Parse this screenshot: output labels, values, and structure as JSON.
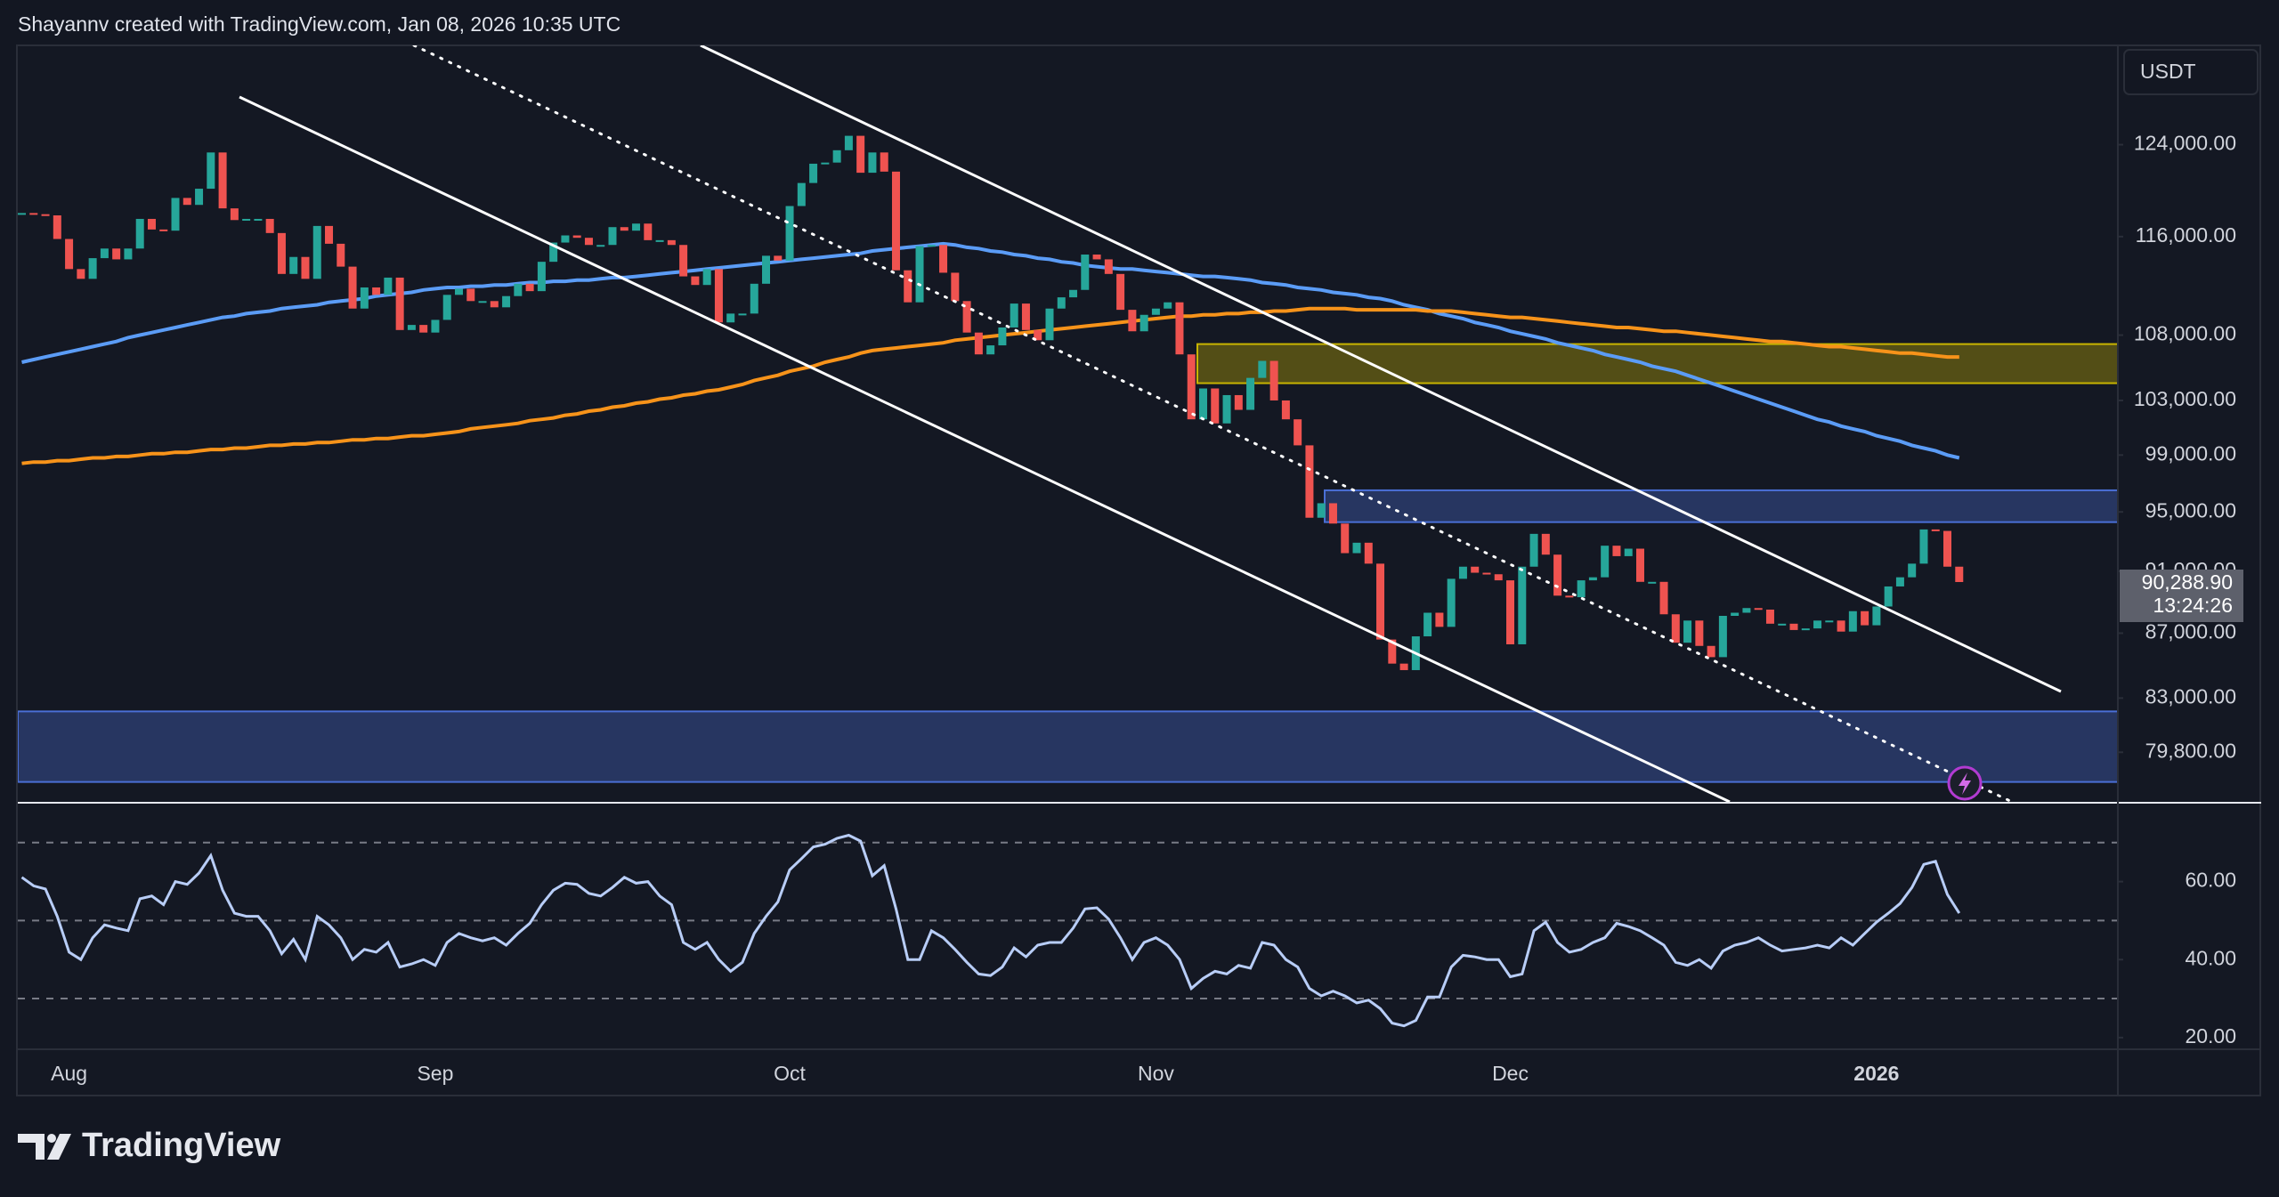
{
  "header": "Shayannv created with TradingView.com, Jan 08, 2026 10:35 UTC",
  "currency": "USDT",
  "brand": "TradingView",
  "chart_data": [
    {
      "type": "candlestick",
      "categories": [
        null,
        null,
        null,
        null,
        "Aug",
        null,
        null,
        null,
        null,
        null,
        null,
        null,
        null,
        null,
        null,
        null,
        null,
        null,
        null,
        null,
        null,
        null,
        null,
        null,
        null,
        null,
        null,
        null,
        null,
        null,
        null,
        null,
        null,
        null,
        null,
        "Sep",
        null,
        null,
        null,
        null,
        null,
        null,
        null,
        null,
        null,
        null,
        null,
        null,
        null,
        null,
        null,
        null,
        null,
        null,
        null,
        null,
        null,
        null,
        null,
        null,
        null,
        null,
        null,
        null,
        null,
        "Oct",
        null,
        null,
        null,
        null,
        null,
        null,
        null,
        null,
        null,
        null,
        null,
        null,
        null,
        null,
        null,
        null,
        null,
        null,
        null,
        null,
        null,
        null,
        null,
        null,
        null,
        null,
        null,
        null,
        null,
        null,
        "Nov",
        null,
        null,
        null,
        null,
        null,
        null,
        null,
        null,
        null,
        null,
        null,
        null,
        null,
        null,
        null,
        null,
        null,
        null,
        null,
        null,
        null,
        null,
        null,
        null,
        null,
        null,
        null,
        null,
        null,
        "Dec",
        null,
        null,
        null,
        null,
        null,
        null,
        null,
        null,
        null,
        null,
        null,
        null,
        null,
        null,
        null,
        null,
        null,
        null,
        null,
        null,
        null,
        null,
        null,
        null,
        null,
        null,
        null,
        null,
        null,
        null,
        "2026",
        null,
        null,
        null,
        null,
        null,
        null,
        null
      ],
      "close": [
        118000,
        117900,
        117800,
        115800,
        113300,
        112500,
        114200,
        115000,
        114100,
        115000,
        117500,
        116600,
        116500,
        119300,
        118700,
        120100,
        123300,
        118400,
        117400,
        117500,
        117500,
        116300,
        112900,
        114300,
        112500,
        116900,
        115400,
        113500,
        110100,
        111800,
        111200,
        112600,
        108400,
        108800,
        108200,
        109200,
        111200,
        111700,
        110700,
        110700,
        110200,
        111100,
        112100,
        111500,
        113900,
        115500,
        116100,
        115900,
        115300,
        115300,
        116800,
        116500,
        117100,
        115700,
        115700,
        115300,
        112700,
        112000,
        113300,
        109000,
        109700,
        109700,
        112100,
        114400,
        114000,
        118600,
        120600,
        122300,
        122400,
        123500,
        124800,
        121500,
        123300,
        121600,
        113200,
        110600,
        115200,
        115300,
        113000,
        110700,
        108200,
        106500,
        107200,
        108600,
        110500,
        108400,
        107600,
        110100,
        111000,
        111600,
        114500,
        114100,
        112900,
        110000,
        108300,
        109600,
        110100,
        110600,
        106500,
        101600,
        103900,
        101300,
        103400,
        102300,
        104700,
        106000,
        103000,
        101600,
        99700,
        94600,
        95600,
        94200,
        92200,
        92900,
        91500,
        86600,
        85100,
        84700,
        86800,
        88300,
        87400,
        90500,
        91300,
        90900,
        90800,
        90400,
        86300,
        91300,
        93500,
        92100,
        89400,
        89300,
        90400,
        90600,
        92700,
        92000,
        92500,
        90300,
        90300,
        88200,
        86400,
        87800,
        86200,
        85500,
        88100,
        88300,
        88600,
        88500,
        87600,
        87600,
        87200,
        87300,
        87800,
        87800,
        87100,
        88400,
        87500,
        88700,
        90000,
        90600,
        91500,
        93800,
        93700,
        91300,
        90288.9
      ],
      "up_color": "#26a69a",
      "down_color": "#ef5350",
      "lines": [
        {
          "color": "#5b9cf6",
          "values": [
            105900,
            106100,
            106300,
            106500,
            106700,
            106900,
            107100,
            107300,
            107500,
            107800,
            108000,
            108200,
            108400,
            108600,
            108800,
            109000,
            109200,
            109400,
            109500,
            109700,
            109800,
            109900,
            110100,
            110200,
            110300,
            110400,
            110600,
            110700,
            110800,
            110900,
            111100,
            111200,
            111300,
            111400,
            111600,
            111700,
            111800,
            111800,
            111900,
            111900,
            112000,
            112000,
            112100,
            112200,
            112200,
            112300,
            112300,
            112400,
            112400,
            112500,
            112600,
            112600,
            112700,
            112800,
            112900,
            113000,
            113100,
            113200,
            113300,
            113400,
            113500,
            113600,
            113700,
            113800,
            113900,
            114000,
            114100,
            114200,
            114300,
            114400,
            114500,
            114600,
            114800,
            114900,
            115000,
            115100,
            115200,
            115300,
            115400,
            115300,
            115100,
            115000,
            114800,
            114700,
            114500,
            114400,
            114200,
            114100,
            113900,
            113800,
            113600,
            113500,
            113400,
            113300,
            113300,
            113200,
            113100,
            113000,
            112900,
            112800,
            112700,
            112700,
            112600,
            112500,
            112400,
            112200,
            112100,
            112000,
            111800,
            111700,
            111600,
            111400,
            111300,
            111200,
            111000,
            110900,
            110700,
            110400,
            110200,
            110000,
            109700,
            109500,
            109300,
            109000,
            108800,
            108600,
            108300,
            108100,
            107900,
            107700,
            107400,
            107200,
            107000,
            106800,
            106500,
            106300,
            106100,
            105900,
            105600,
            105400,
            105200,
            104900,
            104600,
            104300,
            104000,
            103700,
            103400,
            103100,
            102800,
            102500,
            102200,
            101900,
            101600,
            101400,
            101100,
            100900,
            100700,
            100400,
            100200,
            100000,
            99700,
            99500,
            99300,
            99000,
            98800
          ]
        },
        {
          "color": "#f7931a",
          "values": [
            98400,
            98500,
            98500,
            98600,
            98600,
            98700,
            98800,
            98800,
            98900,
            98900,
            99000,
            99100,
            99100,
            99200,
            99200,
            99300,
            99400,
            99400,
            99500,
            99500,
            99600,
            99700,
            99700,
            99800,
            99800,
            99900,
            99900,
            100000,
            100100,
            100100,
            100200,
            100200,
            100300,
            100400,
            100400,
            100500,
            100600,
            100700,
            100900,
            101000,
            101100,
            101200,
            101300,
            101500,
            101600,
            101700,
            101900,
            102000,
            102200,
            102300,
            102500,
            102600,
            102800,
            102900,
            103100,
            103200,
            103400,
            103500,
            103700,
            103800,
            104000,
            104200,
            104500,
            104700,
            104900,
            105200,
            105400,
            105600,
            105900,
            106100,
            106300,
            106600,
            106800,
            106900,
            107000,
            107100,
            107200,
            107300,
            107400,
            107600,
            107700,
            107800,
            107900,
            108000,
            108100,
            108200,
            108300,
            108400,
            108500,
            108600,
            108700,
            108800,
            108900,
            109000,
            109100,
            109200,
            109300,
            109400,
            109500,
            109500,
            109600,
            109600,
            109700,
            109700,
            109800,
            109800,
            109900,
            109900,
            110000,
            110100,
            110100,
            110100,
            110100,
            110000,
            110000,
            110000,
            110000,
            110000,
            110000,
            109900,
            109900,
            109900,
            109800,
            109700,
            109600,
            109500,
            109400,
            109400,
            109300,
            109200,
            109100,
            109000,
            108900,
            108800,
            108700,
            108600,
            108600,
            108500,
            108400,
            108300,
            108300,
            108200,
            108100,
            108000,
            107900,
            107800,
            107700,
            107600,
            107500,
            107500,
            107400,
            107300,
            107200,
            107100,
            107100,
            107000,
            106900,
            106800,
            106700,
            106600,
            106600,
            106500,
            106400,
            106300,
            106300
          ]
        }
      ],
      "zones": [
        {
          "top": 107300,
          "bottom": 104300,
          "color": "#c8b400"
        },
        {
          "top": 96500,
          "bottom": 94300,
          "color": "#4a6fd6"
        },
        {
          "top": 82200,
          "bottom": 78100,
          "color": "#4a6fd6"
        }
      ],
      "log_scale": true,
      "ylim": [
        76980,
        133260
      ],
      "yticks": [
        {
          "value": 79800,
          "label": "79,800.00"
        },
        {
          "value": 83000,
          "label": "83,000.00"
        },
        {
          "value": 87000,
          "label": "87,000.00"
        },
        {
          "value": 91000,
          "label": "91,000.00"
        },
        {
          "value": 95000,
          "label": "95,000.00"
        },
        {
          "value": 99000,
          "label": "99,000.00"
        },
        {
          "value": 103000,
          "label": "103,000.00"
        },
        {
          "value": 108000,
          "label": "108,000.00"
        },
        {
          "value": 116000,
          "label": "116,000.00"
        },
        {
          "value": 124000,
          "label": "124,000.00"
        }
      ],
      "last_label": "90,288.90",
      "countdown": "13:24:26"
    },
    {
      "type": "line",
      "color": "#b8cdf7",
      "values": [
        61.1,
        58.9,
        58.1,
        51.1,
        41.9,
        40.0,
        45.6,
        48.9,
        48.1,
        47.4,
        55.6,
        56.3,
        54.1,
        60.0,
        59.3,
        62.2,
        66.7,
        57.8,
        51.9,
        51.1,
        51.1,
        47.4,
        41.5,
        45.2,
        40.0,
        51.1,
        48.9,
        45.6,
        40.0,
        42.6,
        41.9,
        44.4,
        38.1,
        38.9,
        40.0,
        38.5,
        44.4,
        46.7,
        45.6,
        44.8,
        45.6,
        43.7,
        46.7,
        49.3,
        54.1,
        57.8,
        59.6,
        59.3,
        57.0,
        56.3,
        58.5,
        61.1,
        59.6,
        60.0,
        56.3,
        54.1,
        44.4,
        42.6,
        44.4,
        40.0,
        37.0,
        39.3,
        46.7,
        51.1,
        54.8,
        63.0,
        65.9,
        68.9,
        69.6,
        71.1,
        71.9,
        70.4,
        61.5,
        64.1,
        53.0,
        40.0,
        40.0,
        47.4,
        45.6,
        42.6,
        39.3,
        36.3,
        35.9,
        38.1,
        43.0,
        40.7,
        43.7,
        44.4,
        44.4,
        48.1,
        53.0,
        53.3,
        50.4,
        45.6,
        40.0,
        44.4,
        45.6,
        43.7,
        40.0,
        32.6,
        35.2,
        37.0,
        36.3,
        38.5,
        37.8,
        44.4,
        43.7,
        40.0,
        38.1,
        32.6,
        30.7,
        31.9,
        30.7,
        28.9,
        29.6,
        27.4,
        23.7,
        23.0,
        24.4,
        30.4,
        30.4,
        38.1,
        41.1,
        40.7,
        40.0,
        40.0,
        35.6,
        36.3,
        47.4,
        49.6,
        44.4,
        41.9,
        42.6,
        44.4,
        45.6,
        49.3,
        48.5,
        47.4,
        45.6,
        43.7,
        39.3,
        38.5,
        40.0,
        37.8,
        42.2,
        43.7,
        44.4,
        45.6,
        43.7,
        42.2,
        42.6,
        43.0,
        43.7,
        43.0,
        45.6,
        43.7,
        46.7,
        49.6,
        51.9,
        54.4,
        58.5,
        64.4,
        65.2,
        56.7,
        51.9
      ],
      "ylim": [
        17,
        80
      ],
      "yticks": [
        {
          "value": 20,
          "label": "20.00"
        },
        {
          "value": 40,
          "label": "40.00"
        },
        {
          "value": 60,
          "label": "60.00"
        }
      ],
      "levels": [
        70,
        50,
        30
      ]
    }
  ]
}
